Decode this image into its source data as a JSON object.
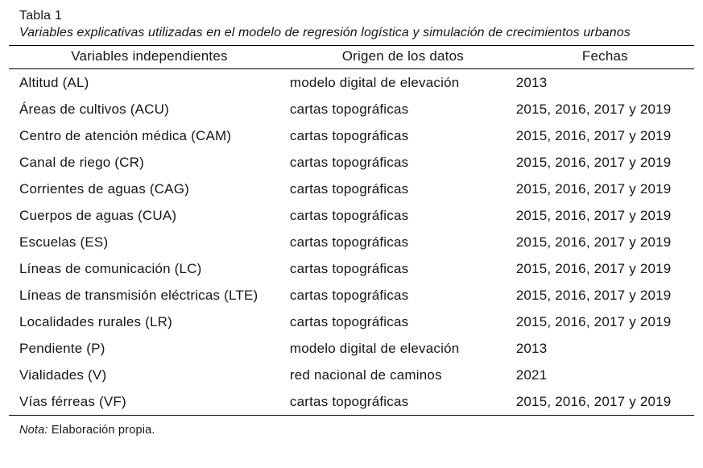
{
  "page": {
    "label": "Tabla 1",
    "caption": "Variables explicativas utilizadas en el modelo de regresión logística y simulación de crecimientos urbanos",
    "note_prefix": "Nota:",
    "note_text": " Elaboración propia."
  },
  "table": {
    "headers": [
      "Variables independientes",
      "Origen de los datos",
      "Fechas"
    ],
    "rows": [
      {
        "variable": "Altitud (AL)",
        "origen": "modelo digital de elevación",
        "fechas": "2013"
      },
      {
        "variable": "Áreas de cultivos (ACU)",
        "origen": "cartas topográficas",
        "fechas": "2015, 2016, 2017 y 2019"
      },
      {
        "variable": "Centro de atención médica (CAM)",
        "origen": "cartas topográficas",
        "fechas": "2015, 2016, 2017 y 2019"
      },
      {
        "variable": "Canal de riego (CR)",
        "origen": "cartas topográficas",
        "fechas": "2015, 2016, 2017 y 2019"
      },
      {
        "variable": "Corrientes de aguas (CAG)",
        "origen": "cartas topográficas",
        "fechas": "2015, 2016, 2017 y 2019"
      },
      {
        "variable": "Cuerpos de aguas (CUA)",
        "origen": "cartas topográficas",
        "fechas": "2015, 2016, 2017 y 2019"
      },
      {
        "variable": "Escuelas (ES)",
        "origen": "cartas topográficas",
        "fechas": "2015, 2016, 2017 y 2019"
      },
      {
        "variable": "Líneas de comunicación (LC)",
        "origen": "cartas topográficas",
        "fechas": "2015, 2016, 2017 y 2019"
      },
      {
        "variable": "Líneas de transmisión eléctricas (LTE)",
        "origen": "cartas topográficas",
        "fechas": "2015, 2016, 2017 y 2019"
      },
      {
        "variable": "Localidades rurales (LR)",
        "origen": "cartas topográficas",
        "fechas": "2015, 2016, 2017 y 2019"
      },
      {
        "variable": "Pendiente (P)",
        "origen": "modelo digital de elevación",
        "fechas": "2013"
      },
      {
        "variable": "Vialidades (V)",
        "origen": "red nacional de caminos",
        "fechas": "2021"
      },
      {
        "variable": "Vías férreas (VF)",
        "origen": "cartas topográficas",
        "fechas": "2015, 2016, 2017 y 2019"
      }
    ]
  },
  "colors": {
    "text": "#161616",
    "rule": "#000000",
    "background": "#ffffff"
  }
}
